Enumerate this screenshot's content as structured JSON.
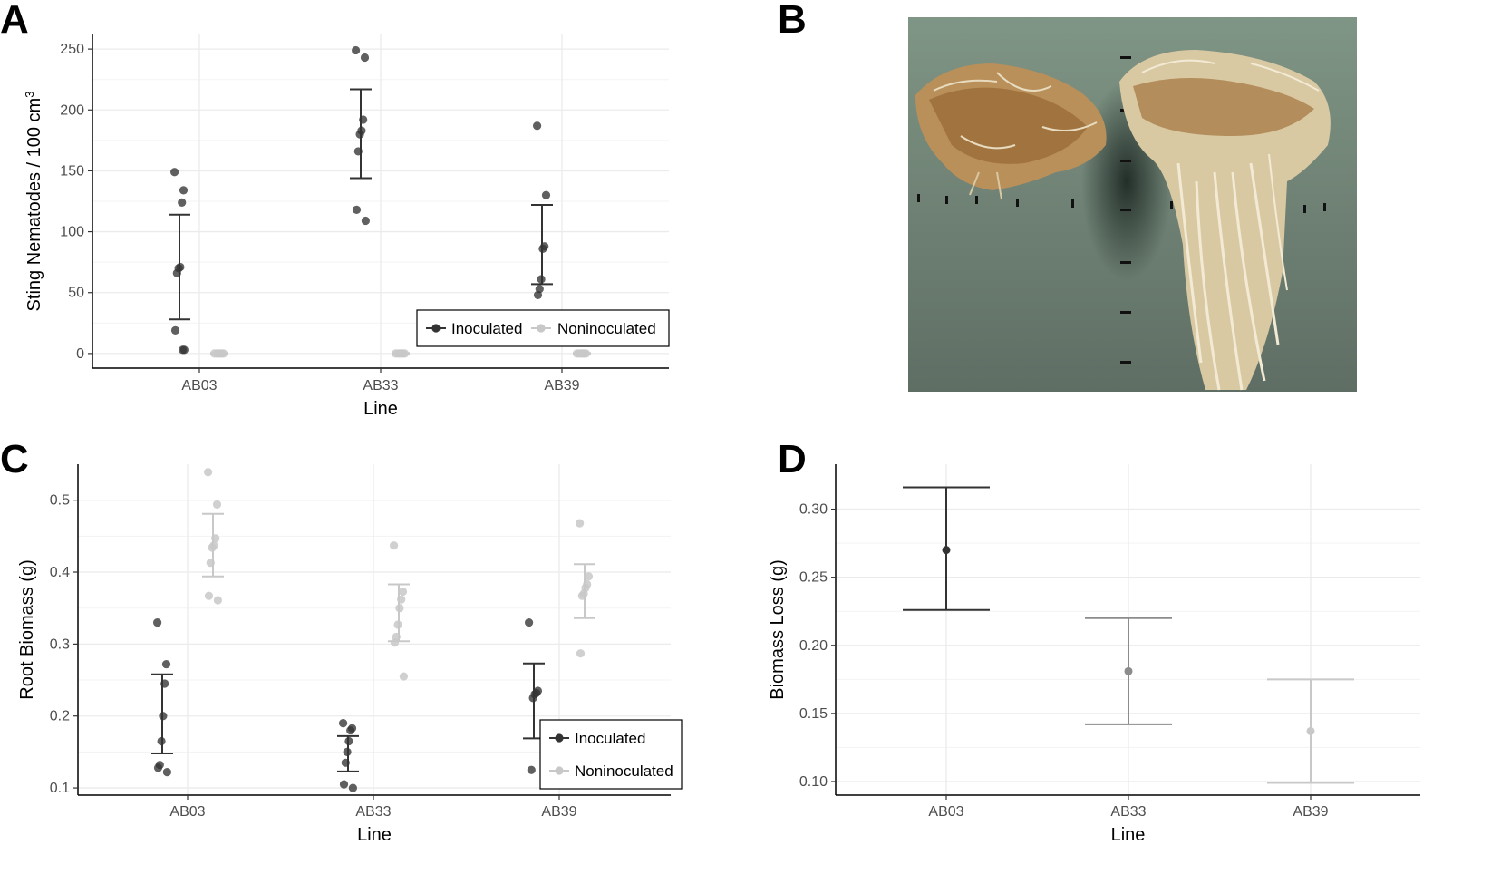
{
  "panels": [
    {
      "letter": "A",
      "chart_data": {
        "type": "scatter",
        "xlabel": "Line",
        "ylabel": "Sting Nematodes / 100 cm",
        "ylabel_superscript": "3",
        "categories": [
          "AB03",
          "AB33",
          "AB39"
        ],
        "ylim": [
          -12,
          262
        ],
        "yticks": [
          0,
          50,
          100,
          150,
          200,
          250
        ],
        "grid": true,
        "legend": {
          "placement": "bottom-right",
          "orientation": "horizontal"
        },
        "series": [
          {
            "name": "Inoculated",
            "color": "#333333",
            "points": [
              [
                149,
                134,
                124,
                71,
                70,
                66,
                19,
                3,
                3
              ],
              [
                249,
                243,
                192,
                183,
                180,
                166,
                118,
                109
              ],
              [
                187,
                130,
                88,
                86,
                61,
                53,
                48
              ]
            ],
            "error_bars": [
              [
                28,
                114
              ],
              [
                144,
                217
              ],
              [
                57,
                122
              ]
            ]
          },
          {
            "name": "Noninoculated",
            "color": "#c8c8c8",
            "points": [
              [
                0,
                0,
                0,
                0,
                0,
                0
              ],
              [
                0,
                0,
                0,
                0,
                0,
                0
              ],
              [
                0,
                0,
                0,
                0,
                0,
                0
              ]
            ],
            "error_bars": [
              [
                0,
                0
              ],
              [
                0,
                0
              ],
              [
                0,
                0
              ]
            ]
          }
        ]
      }
    },
    {
      "letter": "B",
      "photo": {
        "description_icon": "root-system-photo",
        "bg_color": "#6d7f6e"
      }
    },
    {
      "letter": "C",
      "chart_data": {
        "type": "scatter",
        "xlabel": "Line",
        "ylabel": "Root Biomass (g)",
        "categories": [
          "AB03",
          "AB33",
          "AB39"
        ],
        "ylim": [
          0.09,
          0.55
        ],
        "yticks": [
          0.1,
          0.2,
          0.3,
          0.4,
          0.5
        ],
        "yticks_text": [
          "0.1",
          "0.2",
          "0.3",
          "0.4",
          "0.5"
        ],
        "grid": true,
        "legend": {
          "placement": "bottom-right",
          "orientation": "vertical"
        },
        "series": [
          {
            "name": "Inoculated",
            "color": "#333333",
            "points": [
              [
                0.33,
                0.272,
                0.245,
                0.2,
                0.165,
                0.132,
                0.128,
                0.122
              ],
              [
                0.19,
                0.183,
                0.18,
                0.165,
                0.15,
                0.135,
                0.105,
                0.1
              ],
              [
                0.33,
                0.235,
                0.232,
                0.23,
                0.225,
                0.125
              ]
            ],
            "error_bars": [
              [
                0.148,
                0.258
              ],
              [
                0.123,
                0.172
              ],
              [
                0.169,
                0.273
              ]
            ]
          },
          {
            "name": "Noninoculated",
            "color": "#c8c8c8",
            "points": [
              [
                0.539,
                0.494,
                0.447,
                0.437,
                0.434,
                0.413,
                0.367,
                0.361
              ],
              [
                0.437,
                0.373,
                0.362,
                0.35,
                0.327,
                0.31,
                0.302,
                0.255
              ],
              [
                0.468,
                0.394,
                0.383,
                0.378,
                0.37,
                0.367,
                0.287
              ]
            ],
            "error_bars": [
              [
                0.394,
                0.481
              ],
              [
                0.304,
                0.383
              ],
              [
                0.336,
                0.411
              ]
            ]
          }
        ]
      }
    },
    {
      "letter": "D",
      "chart_data": {
        "type": "scatter",
        "xlabel": "Line",
        "ylabel": "Biomass Loss (g)",
        "categories": [
          "AB03",
          "AB33",
          "AB39"
        ],
        "ylim": [
          0.09,
          0.333
        ],
        "yticks": [
          0.1,
          0.15,
          0.2,
          0.25,
          0.3
        ],
        "yticks_text": [
          "0.10",
          "0.15",
          "0.20",
          "0.25",
          "0.30"
        ],
        "grid": true,
        "series": [
          {
            "colors": [
              "#333333",
              "#8c8c8c",
              "#c8c8c8"
            ],
            "values": [
              0.27,
              0.181,
              0.137
            ],
            "error_bars": [
              [
                0.226,
                0.316
              ],
              [
                0.142,
                0.22
              ],
              [
                0.099,
                0.175
              ]
            ]
          }
        ]
      }
    }
  ]
}
